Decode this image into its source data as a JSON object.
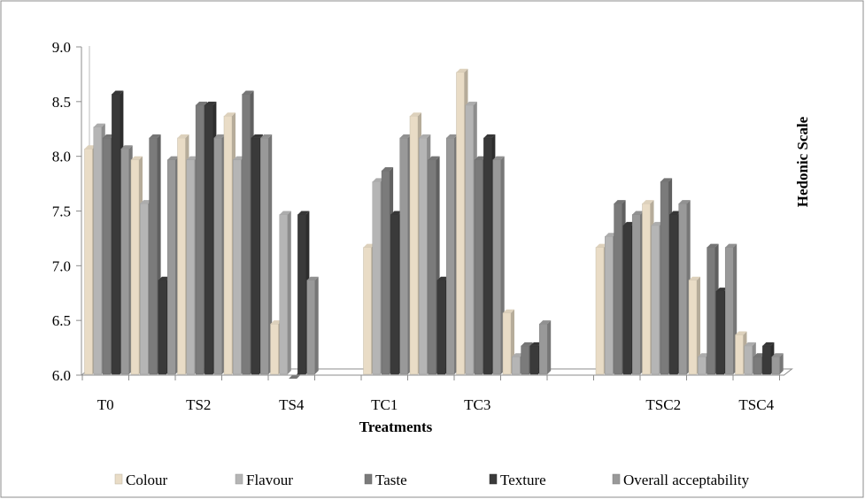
{
  "chart_data": {
    "type": "bar",
    "title": "",
    "xlabel": "Treatments",
    "ylabel": "Hedonic Scale",
    "ylim": [
      6.0,
      9.0
    ],
    "yticks": [
      "6.0",
      "6.5",
      "7.0",
      "7.5",
      "8.0",
      "8.5",
      "9.0"
    ],
    "ytick_values": [
      6.0,
      6.5,
      7.0,
      7.5,
      8.0,
      8.5,
      9.0
    ],
    "categories": [
      "T0",
      "",
      "TS2",
      "",
      "TS4",
      "",
      "TC1",
      "",
      "TC3",
      "",
      "",
      "",
      "TSC2",
      "",
      "TSC4"
    ],
    "legend_position": "bottom",
    "grid": false,
    "series": [
      {
        "name": "Colour",
        "color": "#e9dcc6",
        "values": [
          8.1,
          8.0,
          8.2,
          8.4,
          6.5,
          null,
          7.2,
          8.4,
          8.8,
          6.6,
          null,
          7.2,
          7.6,
          6.9,
          6.4
        ]
      },
      {
        "name": "Flavour",
        "color": "#b5b5b5",
        "values": [
          8.3,
          7.6,
          8.0,
          8.0,
          7.5,
          null,
          7.8,
          8.2,
          8.5,
          6.2,
          null,
          7.3,
          7.4,
          6.2,
          6.3
        ]
      },
      {
        "name": "Taste",
        "color": "#7b7b7b",
        "values": [
          8.2,
          8.2,
          8.5,
          8.6,
          6.0,
          null,
          7.9,
          8.0,
          8.0,
          6.3,
          null,
          7.6,
          7.8,
          7.2,
          6.2
        ]
      },
      {
        "name": "Texture",
        "color": "#3a3a3a",
        "values": [
          8.6,
          6.9,
          8.5,
          8.2,
          7.5,
          null,
          7.5,
          6.9,
          8.2,
          6.3,
          null,
          7.4,
          7.5,
          6.8,
          6.3
        ]
      },
      {
        "name": "Overall acceptability",
        "color": "#999999",
        "values": [
          8.1,
          8.0,
          8.2,
          8.2,
          6.9,
          null,
          8.2,
          8.2,
          8.0,
          6.5,
          null,
          7.5,
          7.6,
          7.2,
          6.2
        ]
      }
    ]
  }
}
